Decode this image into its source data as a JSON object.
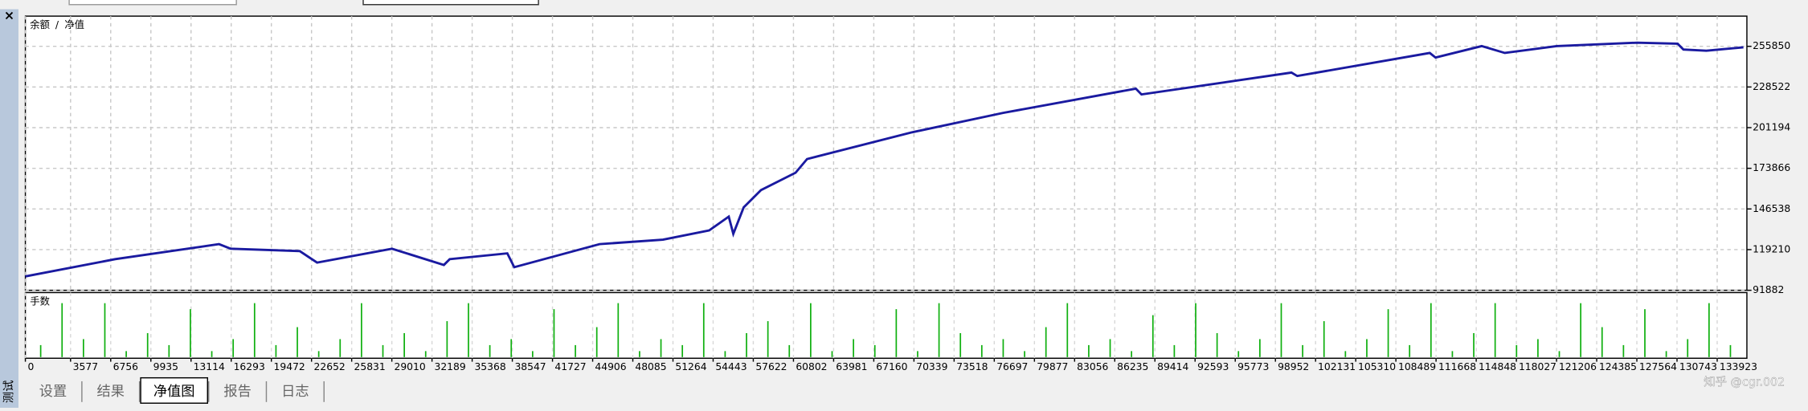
{
  "chart_data": {
    "type": "line",
    "legend": [
      {
        "name": "余额",
        "color": "#2a2aa8"
      },
      {
        "name": "净值",
        "color": "#20b020"
      }
    ],
    "legend_separator": "/",
    "x": [
      0,
      7120,
      15330,
      16250,
      21720,
      23090,
      29020,
      33130,
      33590,
      38150,
      38700,
      45450,
      50470,
      54130,
      55680,
      56040,
      56860,
      58230,
      60970,
      61880,
      70100,
      77400,
      87900,
      88350,
      100220,
      100680,
      111170,
      111630,
      115280,
      117110,
      121210,
      127600,
      130790,
      131250,
      133070,
      136000
    ],
    "series": [
      {
        "name": "余额",
        "color": "#1a1aa0",
        "values": [
          101200,
          112800,
          122900,
          119800,
          118200,
          110500,
          119800,
          108900,
          112800,
          116700,
          107400,
          122900,
          125900,
          132100,
          141400,
          129800,
          147600,
          159200,
          170900,
          180100,
          197900,
          211100,
          227400,
          223500,
          238200,
          235900,
          251400,
          248300,
          256000,
          251400,
          256000,
          258300,
          257600,
          253700,
          252900,
          255200
        ]
      }
    ],
    "xlim": [
      0,
      136000
    ],
    "xticks": [
      0,
      3577,
      6756,
      9935,
      13114,
      16293,
      19472,
      22652,
      25831,
      29010,
      32189,
      35368,
      38547,
      41727,
      44906,
      48085,
      51264,
      54443,
      57622,
      60802,
      63981,
      67160,
      70339,
      73518,
      76697,
      79877,
      83056,
      86235,
      89414,
      92593,
      95773,
      98952,
      102131,
      105310,
      108489,
      111668,
      114848,
      118027,
      121206,
      124385,
      127564,
      130743,
      133923
    ],
    "ylim": [
      91882,
      276140
    ],
    "yticks": [
      91882,
      119210,
      146538,
      173866,
      201194,
      228522,
      255850
    ],
    "grid": true,
    "volume": {
      "label": "手数",
      "color": "#10b010",
      "ylim": [
        0,
        10
      ],
      "values": [
        2,
        9,
        3,
        9,
        1,
        4,
        2,
        8,
        1,
        3,
        9,
        2,
        5,
        1,
        3,
        9,
        2,
        4,
        1,
        6,
        9,
        2,
        3,
        1,
        8,
        2,
        5,
        9,
        1,
        3,
        2,
        9,
        1,
        4,
        6,
        2,
        9,
        1,
        3,
        2,
        8,
        1,
        9,
        4,
        2,
        3,
        1,
        5,
        9,
        2,
        3,
        1,
        7,
        2,
        9,
        4,
        1,
        3,
        9,
        2,
        6,
        1,
        3,
        8,
        2,
        9,
        1,
        4,
        9,
        2,
        3,
        1,
        9,
        5,
        2,
        8,
        1,
        3,
        9,
        2
      ]
    }
  },
  "tabs": [
    "设置",
    "结果",
    "净值图",
    "报告",
    "日志"
  ],
  "active_tab": 2,
  "side_label": "测试",
  "close_icon": "×",
  "watermark": "知乎 @cgr.002"
}
